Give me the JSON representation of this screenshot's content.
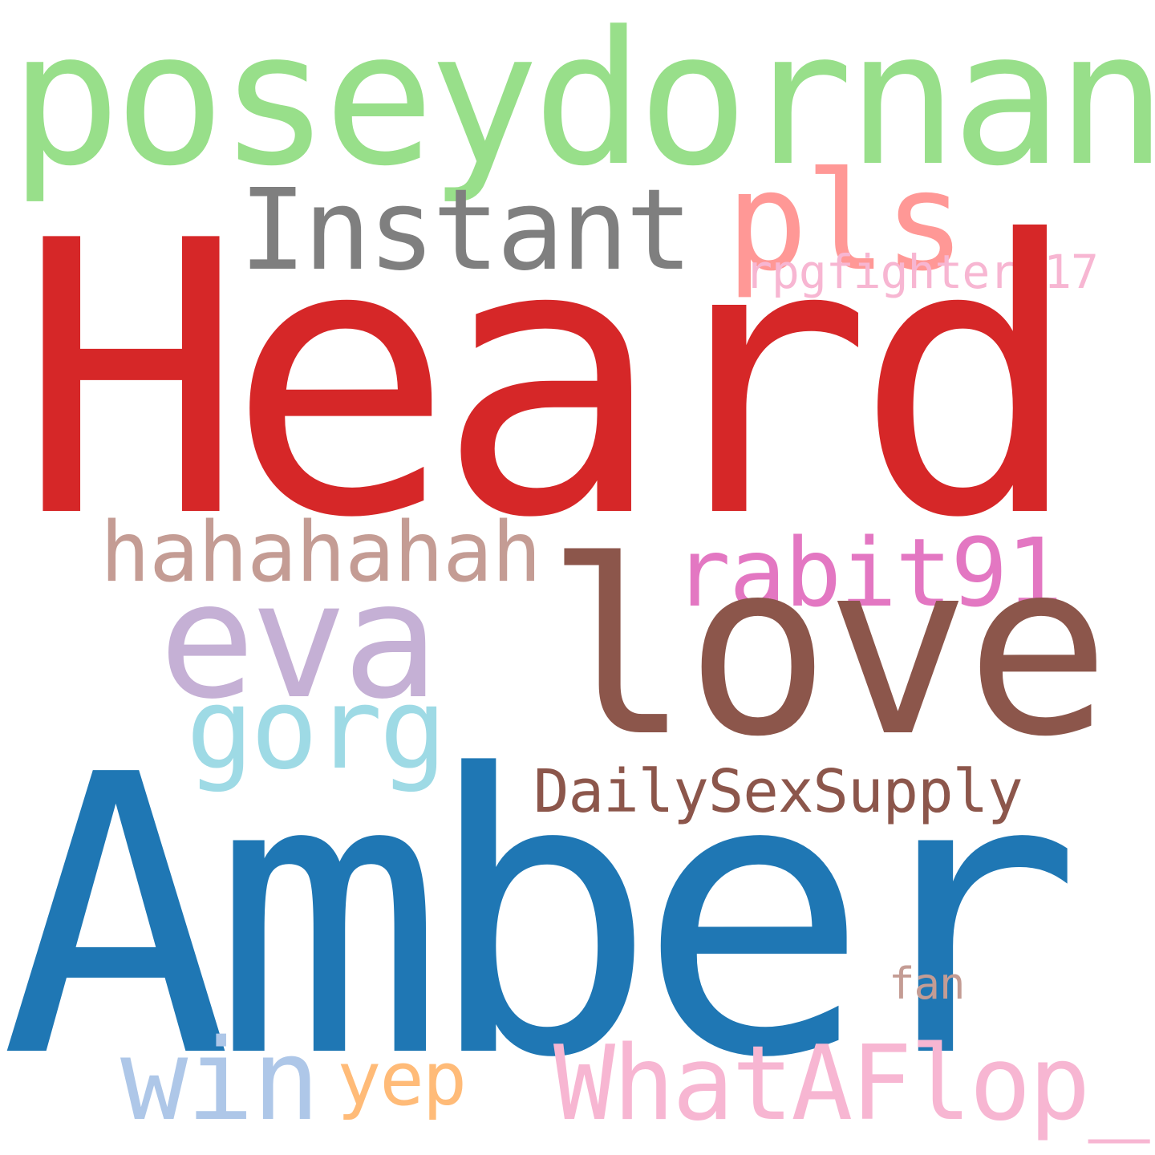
{
  "cloud": {
    "words": {
      "heard": {
        "text": "Heard",
        "color": "#d62728"
      },
      "amber": {
        "text": "Amber",
        "color": "#1f77b4"
      },
      "love": {
        "text": "love",
        "color": "#8c564b"
      },
      "poseydornan": {
        "text": "poseydornan",
        "color": "#98df8a"
      },
      "instant": {
        "text": "Instant",
        "color": "#7f7f7f"
      },
      "pls": {
        "text": "pls",
        "color": "#ff9896"
      },
      "rpgfighter": {
        "text": "rpgfighter_17",
        "color": "#f7b6d2"
      },
      "hahahahah": {
        "text": "hahahahah",
        "color": "#c49c94"
      },
      "rabit91": {
        "text": "rabit91",
        "color": "#e377c2"
      },
      "eva": {
        "text": "eva",
        "color": "#c5b0d5"
      },
      "gorg": {
        "text": "gorg",
        "color": "#9edae5"
      },
      "dailysexsupply": {
        "text": "DailySexSupply",
        "color": "#8c564b"
      },
      "fan": {
        "text": "fan",
        "color": "#c49c94"
      },
      "win": {
        "text": "win",
        "color": "#aec7e8"
      },
      "yep": {
        "text": "yep",
        "color": "#ffbb78"
      },
      "whataflop": {
        "text": "WhatAFlop_",
        "color": "#f7b6d2"
      }
    }
  }
}
